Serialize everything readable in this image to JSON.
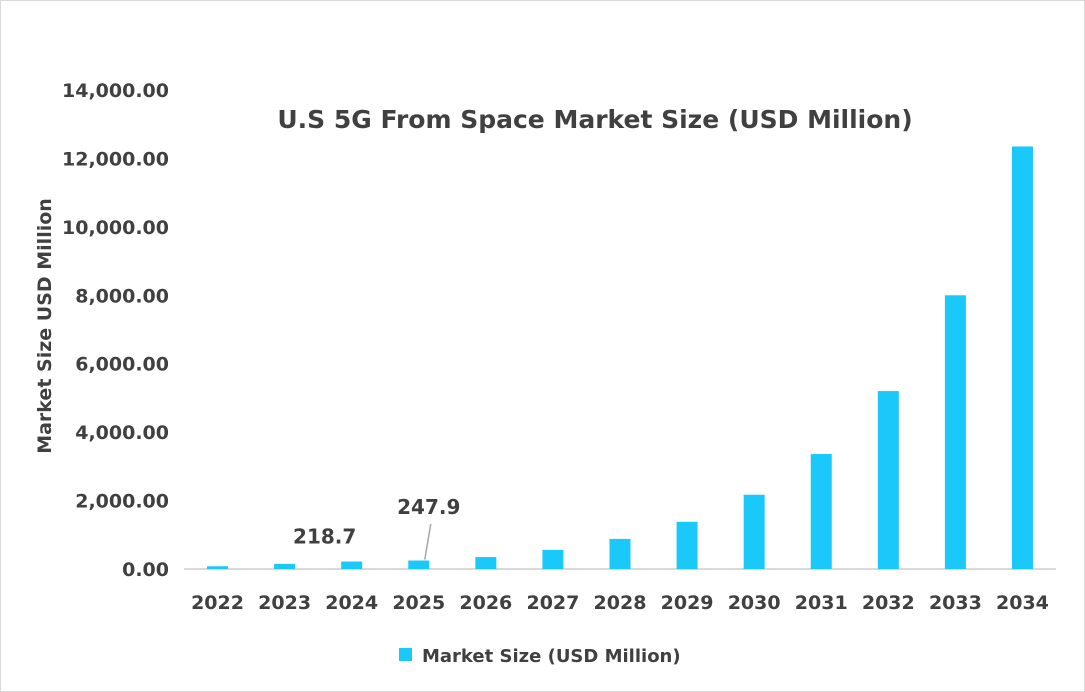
{
  "chart_data": {
    "type": "bar",
    "title": "U.S 5G From Space Market Size (USD Million)",
    "xlabel": "",
    "ylabel": "Market Size USD Million",
    "ylim": [
      0,
      14000
    ],
    "yticks": [
      "0.00",
      "2,000.00",
      "4,000.00",
      "6,000.00",
      "8,000.00",
      "10,000.00",
      "12,000.00",
      "14,000.00"
    ],
    "categories": [
      "2022",
      "2023",
      "2024",
      "2025",
      "2026",
      "2027",
      "2028",
      "2029",
      "2030",
      "2031",
      "2032",
      "2033",
      "2034"
    ],
    "series": [
      {
        "name": "Market Size (USD Million)",
        "color": "#1BC8FA",
        "values": [
          80,
          150,
          218.7,
          247.9,
          350,
          560,
          880,
          1380,
          2170,
          3360,
          5200,
          8000,
          12350
        ]
      }
    ],
    "data_labels": [
      {
        "index": 2,
        "text": "218.7"
      },
      {
        "index": 3,
        "text": "247.9"
      }
    ],
    "grid": false,
    "legend": "bottom"
  }
}
